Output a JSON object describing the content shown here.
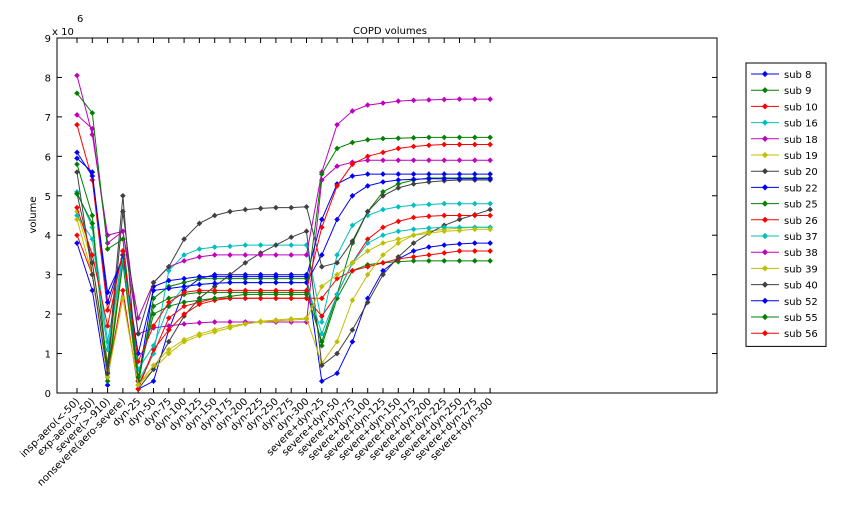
{
  "chart_data": {
    "type": "line",
    "title": "COPD volumes",
    "ylabel": "volume",
    "xlabel": "",
    "y_exponent_label": "x 10",
    "y_exponent_power": "6",
    "ylim": [
      0,
      9000000
    ],
    "yticks": [
      0,
      1,
      2,
      3,
      4,
      5,
      6,
      7,
      8,
      9
    ],
    "grid": false,
    "legend_position": "right",
    "categories": [
      "insp-aero(<-50)",
      "exp-aero(>-50)",
      "severe(>-910)",
      "nonsevere(aero-severe)",
      "dyn-25",
      "dyn-50",
      "dyn-75",
      "dyn-100",
      "dyn-125",
      "dyn-150",
      "dyn-175",
      "dyn-200",
      "dyn-225",
      "dyn-250",
      "dyn-275",
      "dyn-300",
      "severe+dyn-25",
      "severe+dyn-50",
      "severe+dyn-75",
      "severe+dyn-100",
      "severe+dyn-125",
      "severe+dyn-150",
      "severe+dyn-175",
      "severe+dyn-200",
      "severe+dyn-225",
      "severe+dyn-250",
      "severe+dyn-275",
      "severe+dyn-300"
    ],
    "series": [
      {
        "name": "sub 8",
        "color": "#0000ff",
        "values": [
          3.8,
          2.6,
          0.2,
          3.6,
          0.1,
          0.3,
          1.6,
          2.6,
          2.9,
          3.0,
          3.0,
          3.0,
          3.0,
          3.0,
          3.0,
          3.0,
          0.3,
          0.5,
          1.3,
          2.4,
          3.1,
          3.4,
          3.6,
          3.7,
          3.75,
          3.78,
          3.8,
          3.8
        ]
      },
      {
        "name": "sub 9",
        "color": "#008000",
        "values": [
          5.8,
          4.5,
          0.3,
          3.3,
          0.2,
          2.4,
          2.7,
          2.8,
          2.9,
          2.9,
          2.9,
          2.9,
          2.9,
          2.9,
          2.9,
          2.9,
          1.2,
          2.4,
          3.1,
          3.25,
          3.3,
          3.33,
          3.35,
          3.35,
          3.35,
          3.35,
          3.35,
          3.35
        ]
      },
      {
        "name": "sub 10",
        "color": "#ff0000",
        "values": [
          6.8,
          5.4,
          2.1,
          3.5,
          0.2,
          1.0,
          1.9,
          2.2,
          2.3,
          2.4,
          2.4,
          2.4,
          2.4,
          2.4,
          2.4,
          2.4,
          2.4,
          2.9,
          3.1,
          3.2,
          3.3,
          3.4,
          3.45,
          3.5,
          3.55,
          3.6,
          3.6,
          3.6
        ]
      },
      {
        "name": "sub 16",
        "color": "#00bfbf",
        "values": [
          5.1,
          4.2,
          1.3,
          3.5,
          0.3,
          1.0,
          3.1,
          3.5,
          3.65,
          3.7,
          3.72,
          3.75,
          3.75,
          3.75,
          3.75,
          3.75,
          1.8,
          3.5,
          4.25,
          4.5,
          4.65,
          4.72,
          4.76,
          4.78,
          4.8,
          4.8,
          4.8,
          4.8
        ]
      },
      {
        "name": "sub 18",
        "color": "#bf00bf",
        "values": [
          8.05,
          6.55,
          4.0,
          4.1,
          1.5,
          1.65,
          1.7,
          1.75,
          1.78,
          1.8,
          1.8,
          1.8,
          1.8,
          1.8,
          1.8,
          1.8,
          5.4,
          5.75,
          5.85,
          5.9,
          5.9,
          5.9,
          5.9,
          5.9,
          5.9,
          5.9,
          5.9,
          5.9
        ]
      },
      {
        "name": "sub 19",
        "color": "#bfbf00",
        "values": [
          4.6,
          3.3,
          0.8,
          3.3,
          0.2,
          0.6,
          1.0,
          1.3,
          1.45,
          1.55,
          1.65,
          1.75,
          1.82,
          1.85,
          1.88,
          1.9,
          0.75,
          1.3,
          2.35,
          3.0,
          3.5,
          3.8,
          4.0,
          4.1,
          4.15,
          4.18,
          4.2,
          4.2
        ]
      },
      {
        "name": "sub 20",
        "color": "#404040",
        "values": [
          5.05,
          3.3,
          0.7,
          5.0,
          0.1,
          0.6,
          1.3,
          1.95,
          2.4,
          2.7,
          3.0,
          3.3,
          3.55,
          3.75,
          3.95,
          4.1,
          0.7,
          1.0,
          1.6,
          2.3,
          3.0,
          3.45,
          3.8,
          4.05,
          4.25,
          4.4,
          4.52,
          4.65
        ]
      },
      {
        "name": "sub 22",
        "color": "#0000ff",
        "values": [
          6.1,
          5.5,
          2.55,
          3.4,
          0.3,
          2.7,
          2.85,
          2.9,
          2.95,
          2.95,
          2.95,
          2.95,
          2.95,
          2.95,
          2.95,
          2.95,
          4.4,
          5.3,
          5.5,
          5.55,
          5.55,
          5.55,
          5.55,
          5.55,
          5.55,
          5.55,
          5.55,
          5.55
        ]
      },
      {
        "name": "sub 25",
        "color": "#008000",
        "values": [
          5.05,
          4.3,
          0.5,
          3.3,
          0.3,
          2.2,
          2.4,
          2.5,
          2.55,
          2.55,
          2.55,
          2.55,
          2.55,
          2.55,
          2.55,
          2.55,
          1.3,
          2.5,
          3.8,
          4.6,
          5.1,
          5.3,
          5.4,
          5.45,
          5.45,
          5.45,
          5.45,
          5.45
        ]
      },
      {
        "name": "sub 26",
        "color": "#ff0000",
        "values": [
          4.0,
          3.0,
          0.4,
          2.6,
          0.1,
          1.1,
          1.6,
          2.0,
          2.25,
          2.35,
          2.4,
          2.4,
          2.4,
          2.4,
          2.4,
          2.4,
          1.95,
          2.5,
          3.3,
          3.9,
          4.2,
          4.35,
          4.45,
          4.48,
          4.5,
          4.5,
          4.5,
          4.5
        ]
      },
      {
        "name": "sub 37",
        "color": "#00bfbf",
        "values": [
          4.5,
          3.9,
          1.1,
          3.4,
          0.6,
          1.2,
          2.2,
          2.7,
          2.75,
          2.78,
          2.8,
          2.8,
          2.8,
          2.8,
          2.8,
          2.8,
          1.5,
          2.5,
          3.3,
          3.8,
          4.0,
          4.1,
          4.15,
          4.18,
          4.2,
          4.2,
          4.2,
          4.2
        ]
      },
      {
        "name": "sub 38",
        "color": "#bf00bf",
        "values": [
          7.05,
          6.7,
          3.8,
          4.1,
          1.9,
          2.8,
          3.2,
          3.35,
          3.45,
          3.5,
          3.5,
          3.5,
          3.5,
          3.5,
          3.5,
          3.5,
          5.6,
          6.8,
          7.15,
          7.3,
          7.35,
          7.4,
          7.42,
          7.43,
          7.44,
          7.45,
          7.45,
          7.45
        ]
      },
      {
        "name": "sub 39",
        "color": "#bfbf00",
        "values": [
          4.4,
          3.0,
          0.4,
          2.4,
          0.2,
          0.7,
          1.1,
          1.35,
          1.5,
          1.6,
          1.7,
          1.75,
          1.8,
          1.83,
          1.85,
          1.87,
          2.7,
          3.0,
          3.3,
          3.6,
          3.8,
          3.9,
          4.0,
          4.05,
          4.1,
          4.12,
          4.15,
          4.15
        ]
      },
      {
        "name": "sub 40",
        "color": "#404040",
        "values": [
          5.6,
          3.0,
          0.5,
          4.6,
          1.5,
          2.8,
          3.2,
          3.9,
          4.3,
          4.5,
          4.6,
          4.65,
          4.68,
          4.7,
          4.7,
          4.72,
          3.2,
          3.3,
          3.85,
          4.6,
          5.0,
          5.2,
          5.3,
          5.35,
          5.38,
          5.4,
          5.4,
          5.4
        ]
      },
      {
        "name": "sub 52",
        "color": "#0000ff",
        "values": [
          5.95,
          5.6,
          2.3,
          3.5,
          1.0,
          2.6,
          2.65,
          2.7,
          2.75,
          2.78,
          2.8,
          2.8,
          2.8,
          2.8,
          2.8,
          2.8,
          3.5,
          4.4,
          5.0,
          5.25,
          5.35,
          5.4,
          5.42,
          5.43,
          5.43,
          5.43,
          5.43,
          5.43
        ]
      },
      {
        "name": "sub 55",
        "color": "#008000",
        "values": [
          7.6,
          7.1,
          3.65,
          3.9,
          0.4,
          2.0,
          2.2,
          2.3,
          2.35,
          2.4,
          2.45,
          2.5,
          2.5,
          2.5,
          2.5,
          2.5,
          5.55,
          6.2,
          6.35,
          6.42,
          6.45,
          6.46,
          6.47,
          6.48,
          6.48,
          6.48,
          6.48,
          6.48
        ]
      },
      {
        "name": "sub 56",
        "color": "#ff0000",
        "values": [
          4.7,
          3.5,
          1.7,
          3.6,
          0.8,
          1.7,
          2.3,
          2.55,
          2.6,
          2.6,
          2.6,
          2.6,
          2.6,
          2.6,
          2.6,
          2.6,
          4.2,
          5.25,
          5.8,
          6.0,
          6.1,
          6.2,
          6.25,
          6.28,
          6.3,
          6.3,
          6.3,
          6.3
        ]
      }
    ]
  }
}
